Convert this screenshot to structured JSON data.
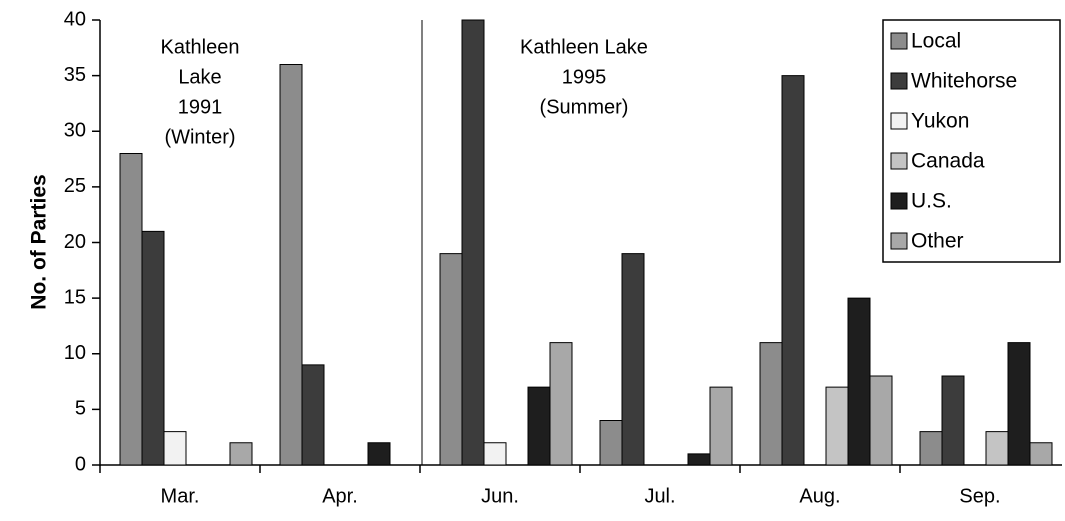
{
  "chart_data": {
    "type": "bar",
    "ylabel": "No. of Parties",
    "categories": [
      "Mar.",
      "Apr.",
      "Jun.",
      "Jul.",
      "Aug.",
      "Sep."
    ],
    "series": [
      {
        "name": "Local",
        "color": "#8c8c8c",
        "values": [
          28,
          36,
          19,
          4,
          11,
          3
        ]
      },
      {
        "name": "Whitehorse",
        "color": "#3c3c3c",
        "values": [
          21,
          9,
          40,
          19,
          35,
          8
        ]
      },
      {
        "name": "Yukon",
        "color": "#f2f2f2",
        "values": [
          3,
          0,
          2,
          0,
          0,
          0
        ]
      },
      {
        "name": "Canada",
        "color": "#c4c4c4",
        "values": [
          0,
          0,
          0,
          0,
          7,
          3
        ]
      },
      {
        "name": "U.S.",
        "color": "#1e1e1e",
        "values": [
          0,
          2,
          7,
          1,
          15,
          11
        ]
      },
      {
        "name": "Other",
        "color": "#a8a8a8",
        "values": [
          2,
          0,
          11,
          7,
          8,
          2
        ]
      }
    ],
    "annotations": [
      [
        "Kathleen",
        "Lake",
        "1991",
        "(Winter)"
      ],
      [
        "Kathleen Lake",
        "1995",
        "(Summer)"
      ]
    ],
    "ylim": [
      0,
      40
    ],
    "yticks": [
      0,
      5,
      10,
      15,
      20,
      25,
      30,
      35,
      40
    ],
    "legend": "upper right"
  }
}
